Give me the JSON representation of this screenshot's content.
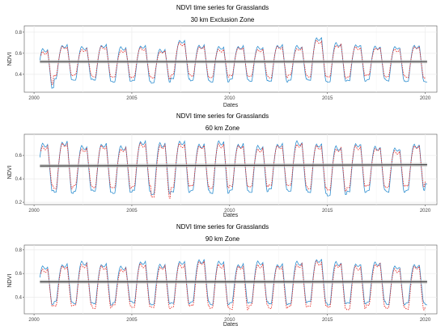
{
  "colors": {
    "panel_border": "#555555",
    "grid": "#ebebeb",
    "series_blue": "#2f8fd0",
    "series_red": "#e8332f",
    "trend": "#333333",
    "ribbon": "#bdbdbd"
  },
  "chart_data": [
    {
      "type": "line",
      "title": "NDVI time series for Grasslands",
      "subtitle": "30 km Exclusion Zone",
      "xlabel": "Dates",
      "ylabel": "NDVI",
      "xlim": [
        1999.5,
        2020.6
      ],
      "ylim": [
        0.23,
        0.86
      ],
      "x_ticks": [
        2000,
        2005,
        2010,
        2015,
        2020
      ],
      "y_ticks": [
        0.4,
        0.6,
        0.8
      ],
      "grid": true,
      "legend": "none",
      "series": [
        {
          "color": "#2f8fd0",
          "start_year": 2000.3,
          "end_year": 2020.1,
          "samples_per_year": 23,
          "peaks": [
            0.64,
            0.68,
            0.66,
            0.68,
            0.66,
            0.67,
            0.64,
            0.72,
            0.68,
            0.66,
            0.67,
            0.66,
            0.68,
            0.67,
            0.75,
            0.7,
            0.68,
            0.67,
            0.66,
            0.68,
            0.67
          ],
          "troughs": [
            0.27,
            0.35,
            0.35,
            0.34,
            0.33,
            0.34,
            0.32,
            0.36,
            0.34,
            0.33,
            0.35,
            0.34,
            0.33,
            0.35,
            0.34,
            0.33,
            0.34,
            0.35,
            0.34,
            0.33,
            0.33
          ]
        },
        {
          "color": "#e8332f",
          "dashed": true,
          "start_year": 2000.35,
          "end_year": 2020.0,
          "samples_per_year": 23,
          "peaks": [
            0.62,
            0.66,
            0.64,
            0.66,
            0.63,
            0.65,
            0.62,
            0.7,
            0.66,
            0.64,
            0.65,
            0.64,
            0.66,
            0.65,
            0.72,
            0.68,
            0.66,
            0.65,
            0.64,
            0.66,
            0.65
          ],
          "troughs": [
            0.3,
            0.39,
            0.39,
            0.38,
            0.37,
            0.38,
            0.36,
            0.4,
            0.38,
            0.37,
            0.39,
            0.38,
            0.37,
            0.39,
            0.38,
            0.37,
            0.38,
            0.39,
            0.38,
            0.37,
            0.37
          ]
        }
      ],
      "trend": {
        "y_start": 0.52,
        "y_end": 0.52,
        "band": 0.015
      }
    },
    {
      "type": "line",
      "title": "NDVI time series for Grasslands",
      "subtitle": "60 km Zone",
      "xlabel": "Dates",
      "ylabel": "NDVI",
      "xlim": [
        1999.5,
        2020.6
      ],
      "ylim": [
        0.18,
        0.78
      ],
      "x_ticks": [
        2000,
        2005,
        2010,
        2015,
        2020
      ],
      "y_ticks": [
        0.2,
        0.4,
        0.6
      ],
      "grid": true,
      "legend": "none",
      "series": [
        {
          "color": "#2f8fd0",
          "start_year": 2000.3,
          "end_year": 2020.1,
          "samples_per_year": 23,
          "peaks": [
            0.7,
            0.72,
            0.68,
            0.7,
            0.68,
            0.72,
            0.71,
            0.72,
            0.7,
            0.72,
            0.7,
            0.68,
            0.7,
            0.72,
            0.7,
            0.68,
            0.7,
            0.68,
            0.66,
            0.7,
            0.68
          ],
          "troughs": [
            0.3,
            0.28,
            0.3,
            0.29,
            0.28,
            0.3,
            0.27,
            0.29,
            0.3,
            0.28,
            0.3,
            0.29,
            0.31,
            0.3,
            0.28,
            0.26,
            0.29,
            0.3,
            0.29,
            0.3,
            0.36
          ]
        },
        {
          "color": "#e8332f",
          "dashed": true,
          "start_year": 2000.35,
          "end_year": 2020.0,
          "samples_per_year": 23,
          "peaks": [
            0.68,
            0.7,
            0.66,
            0.68,
            0.66,
            0.7,
            0.69,
            0.7,
            0.68,
            0.7,
            0.68,
            0.66,
            0.68,
            0.7,
            0.68,
            0.66,
            0.68,
            0.66,
            0.64,
            0.68,
            0.66
          ],
          "troughs": [
            0.34,
            0.32,
            0.34,
            0.33,
            0.32,
            0.34,
            0.24,
            0.33,
            0.34,
            0.32,
            0.34,
            0.33,
            0.35,
            0.34,
            0.32,
            0.3,
            0.33,
            0.34,
            0.33,
            0.34,
            0.38
          ]
        }
      ],
      "trend": {
        "y_start": 0.51,
        "y_end": 0.52,
        "band": 0.015
      }
    },
    {
      "type": "line",
      "title": "NDVI time series for Grasslands",
      "subtitle": "90 km Zone",
      "xlabel": "Dates",
      "ylabel": "NDVI",
      "xlim": [
        1999.5,
        2020.6
      ],
      "ylim": [
        0.26,
        0.84
      ],
      "x_ticks": [
        2000,
        2005,
        2010,
        2015,
        2020
      ],
      "y_ticks": [
        0.4,
        0.6,
        0.8
      ],
      "grid": true,
      "legend": "none",
      "series": [
        {
          "color": "#2f8fd0",
          "start_year": 2000.3,
          "end_year": 2020.1,
          "samples_per_year": 23,
          "peaks": [
            0.66,
            0.68,
            0.7,
            0.68,
            0.66,
            0.7,
            0.68,
            0.7,
            0.72,
            0.7,
            0.68,
            0.7,
            0.68,
            0.7,
            0.72,
            0.7,
            0.68,
            0.7,
            0.66,
            0.68,
            0.7
          ],
          "troughs": [
            0.34,
            0.36,
            0.35,
            0.34,
            0.36,
            0.35,
            0.34,
            0.35,
            0.36,
            0.34,
            0.35,
            0.36,
            0.34,
            0.35,
            0.36,
            0.34,
            0.35,
            0.36,
            0.34,
            0.35,
            0.34
          ]
        },
        {
          "color": "#e8332f",
          "dashed": true,
          "start_year": 2000.35,
          "end_year": 2020.0,
          "samples_per_year": 23,
          "peaks": [
            0.64,
            0.66,
            0.68,
            0.66,
            0.64,
            0.68,
            0.66,
            0.68,
            0.7,
            0.68,
            0.66,
            0.68,
            0.66,
            0.68,
            0.7,
            0.68,
            0.66,
            0.68,
            0.64,
            0.66,
            0.68
          ],
          "troughs": [
            0.32,
            0.33,
            0.33,
            0.31,
            0.33,
            0.32,
            0.31,
            0.32,
            0.33,
            0.31,
            0.3,
            0.33,
            0.31,
            0.32,
            0.33,
            0.31,
            0.3,
            0.33,
            0.31,
            0.3,
            0.32
          ]
        }
      ],
      "trend": {
        "y_start": 0.53,
        "y_end": 0.53,
        "band": 0.015
      }
    }
  ]
}
